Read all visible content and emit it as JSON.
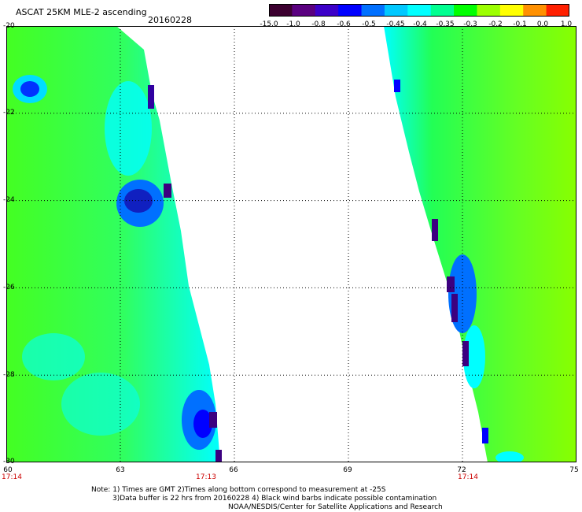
{
  "header": {
    "title": "ASCAT 25KM MLE-2 ascending",
    "date": "20160228"
  },
  "colorbar": {
    "labels": [
      "-15.0",
      "-1.0",
      "-0.8",
      "-0.6",
      "-0.5",
      "-0.45",
      "-0.4",
      "-0.35",
      "-0.3",
      "-0.2",
      "-0.1",
      "0.0",
      "1.0"
    ],
    "colors": [
      "#3c0030",
      "#5a0080",
      "#3c00c8",
      "#0000ff",
      "#0070ff",
      "#00c8ff",
      "#00ffff",
      "#00ff90",
      "#00ff00",
      "#9cff00",
      "#ffff00",
      "#ff9000",
      "#ff2000"
    ]
  },
  "axes": {
    "y_labels": [
      "-20",
      "-22",
      "-24",
      "-26",
      "-28",
      "-30"
    ],
    "x_labels": [
      "60",
      "63",
      "66",
      "69",
      "72",
      "75"
    ],
    "time_labels": [
      {
        "text": "17:14",
        "at": "60"
      },
      {
        "text": "17:13",
        "at": "65"
      },
      {
        "text": "17:14",
        "at": "72"
      }
    ]
  },
  "notes": {
    "line1": "Note: 1) Times are GMT 2)Times along bottom correspond to measurement at -25S",
    "line2": "3)Data buffer is 22 hrs from 20160228 4) Black wind barbs indicate possible contamination",
    "line3": "NOAA/NESDIS/Center for Satellite Applications and Research"
  }
}
